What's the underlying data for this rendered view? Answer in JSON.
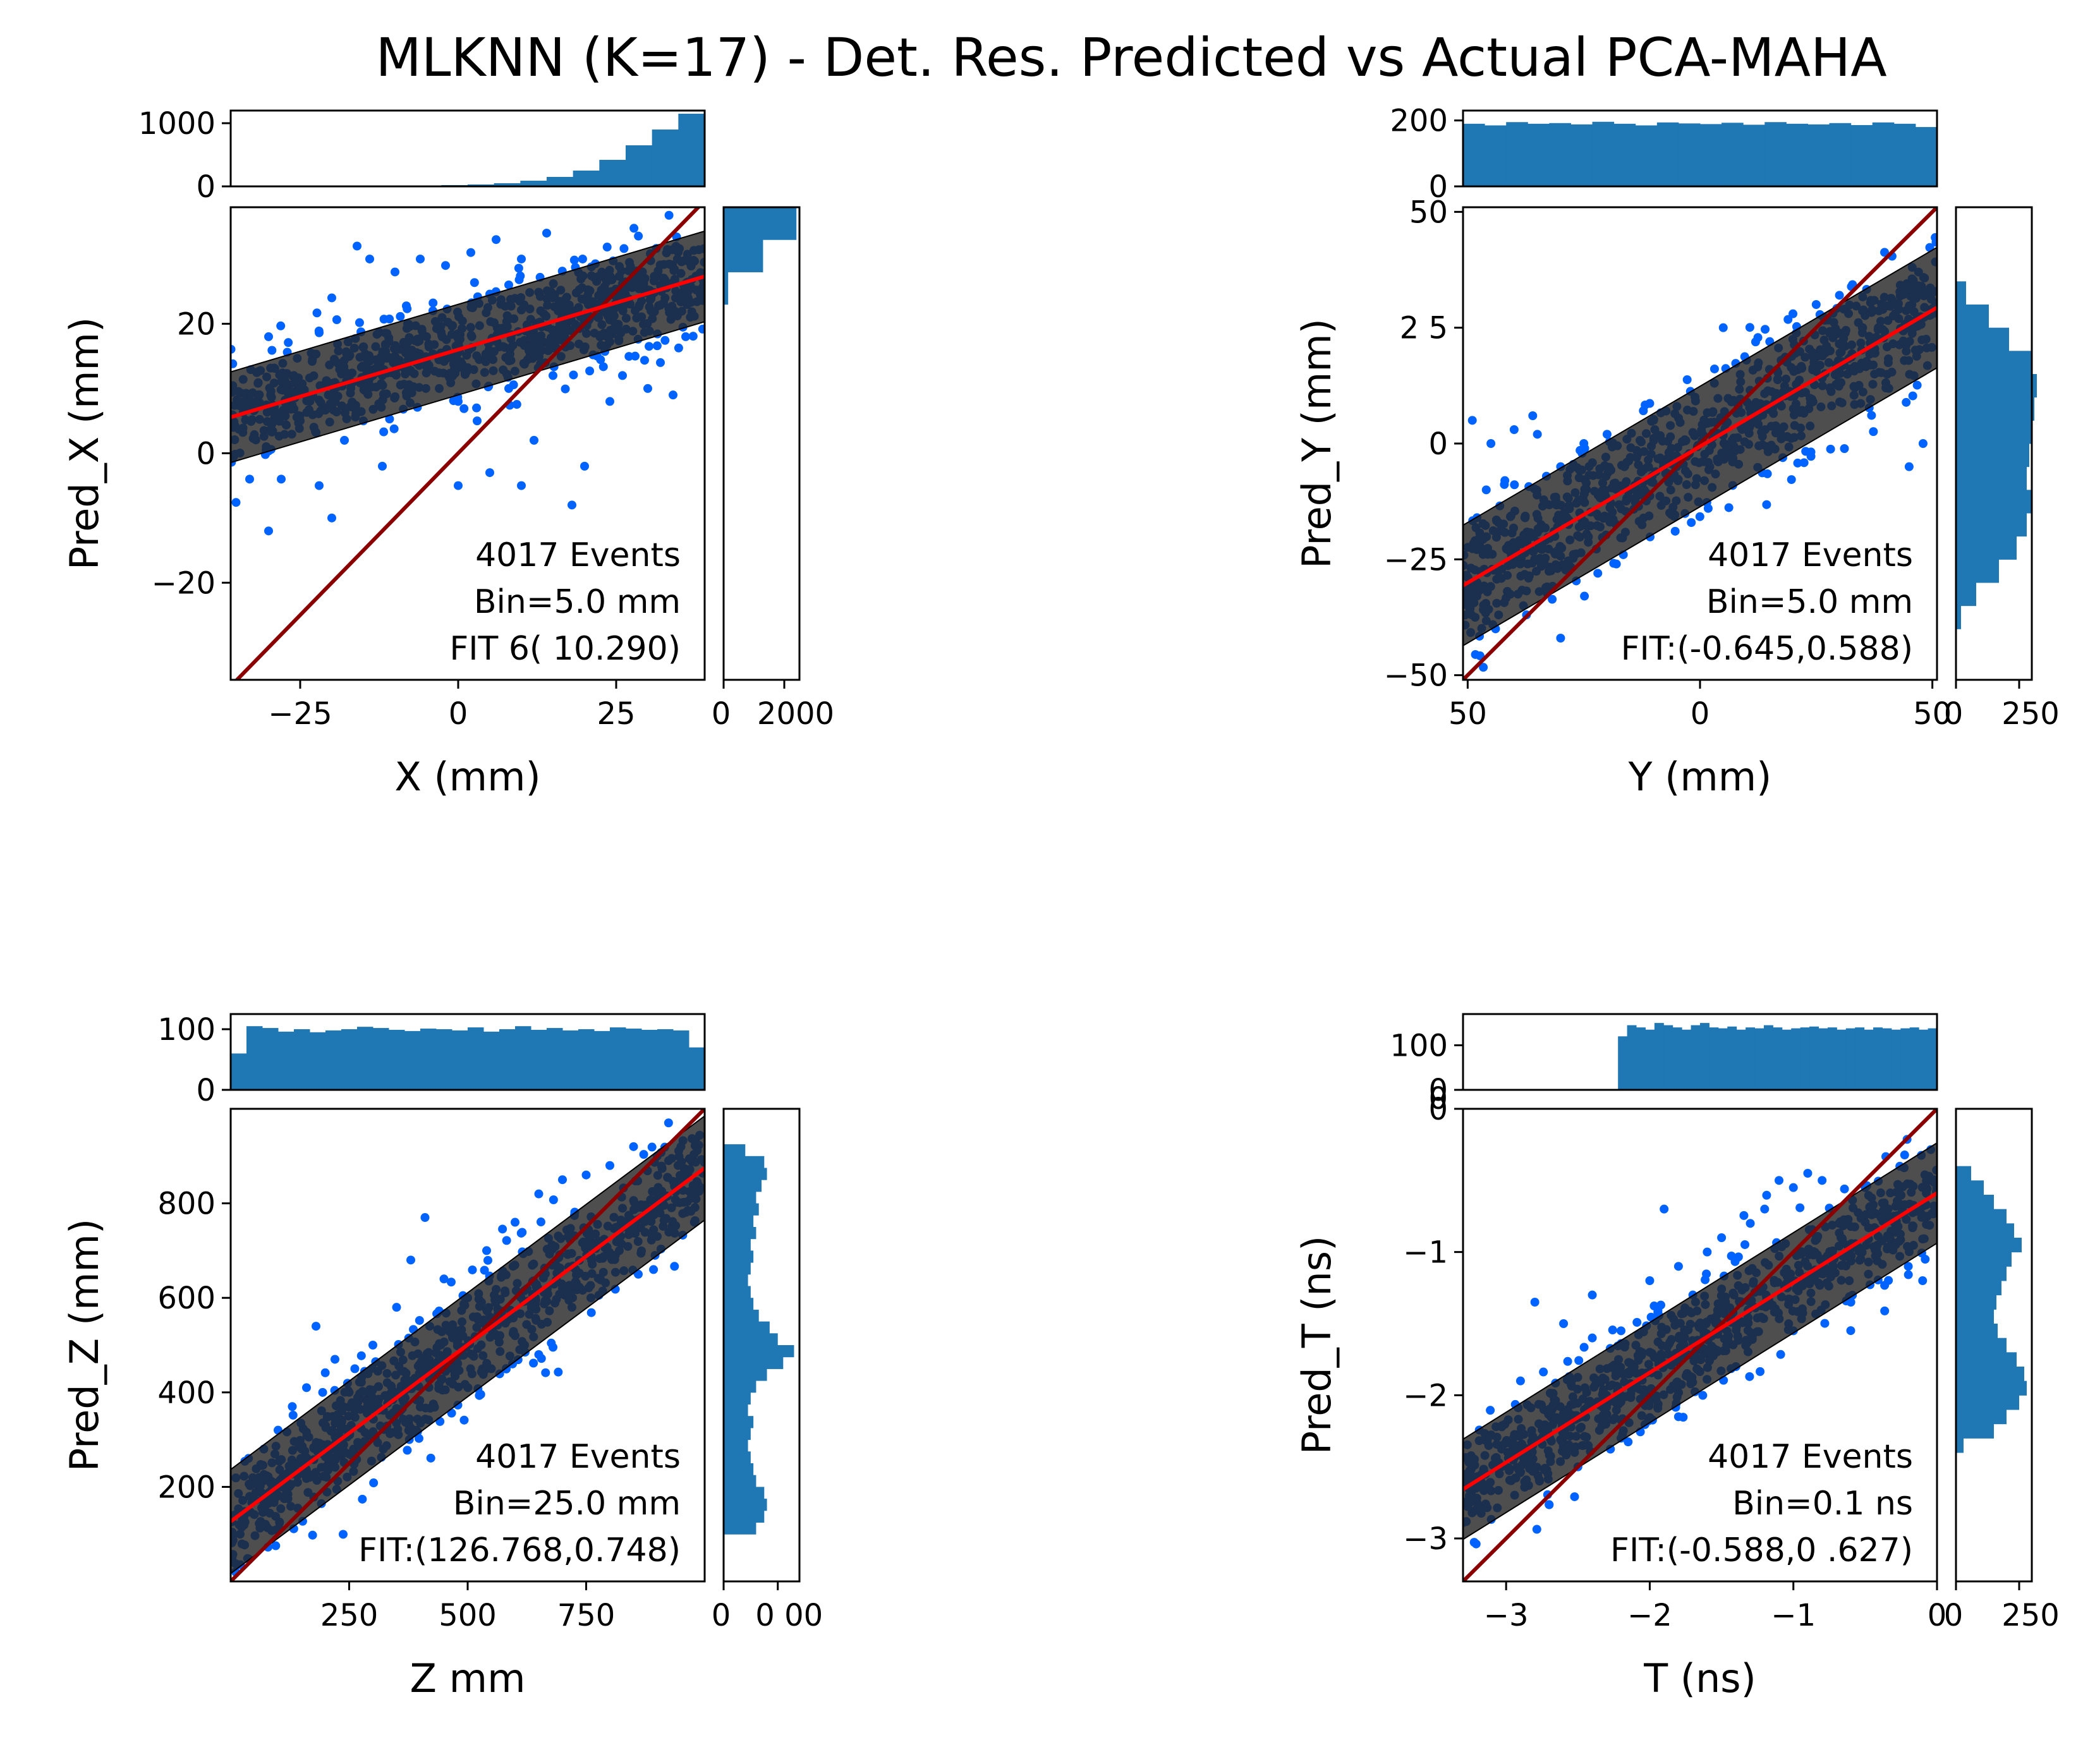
{
  "figure_title": "MLKNN (K=17)  - Det. Res. Predicted vs Actual PCA-MAHA",
  "colors": {
    "scatter": "#0063ff",
    "band": "#222222",
    "band_alpha": 0.8,
    "fit_line": "#ff0000",
    "identity_line": "#8b0000",
    "histogram": "#1f77b4"
  },
  "chart_data": [
    {
      "type": "scatter",
      "panel": "X",
      "xlabel": "X (mm)",
      "ylabel": "Pred_X (mm)",
      "xlim": [
        -36,
        39
      ],
      "ylim": [
        -35,
        38
      ],
      "xticks": [
        -25,
        0,
        25
      ],
      "xtick_labels": [
        "−25",
        "0",
        "25"
      ],
      "yticks": [
        -20,
        0,
        20
      ],
      "ytick_labels": [
        "−20",
        "0",
        "20"
      ],
      "annotation": [
        "4017 Events",
        "Bin=5.0 mm",
        "FIT   6(   10.290)"
      ],
      "events": 4017,
      "bin": "5.0 mm",
      "fit": {
        "intercept": 16,
        "slope": 0.29
      },
      "band_halfwidth": 7,
      "histx": {
        "ylim": [
          0,
          1200
        ],
        "yticks": [
          0,
          1000
        ],
        "ytick_labels": [
          "0",
          "1000"
        ],
        "values": [
          0,
          0,
          0,
          0,
          0,
          0,
          5,
          10,
          20,
          30,
          50,
          90,
          150,
          250,
          420,
          650,
          900,
          1150
        ]
      },
      "histy": {
        "xlim": [
          0,
          2500
        ],
        "xticks": [
          0,
          2000
        ],
        "xtick_labels": [
          "0",
          "2000"
        ],
        "bin_edges": [
          38,
          33,
          28,
          23,
          18,
          13
        ],
        "values": [
          2400,
          1300,
          150,
          20,
          5
        ]
      },
      "outliers": [
        [
          -33,
          -4
        ],
        [
          -30,
          -12
        ],
        [
          -28,
          -4
        ],
        [
          -25,
          5
        ],
        [
          -22,
          -5
        ],
        [
          -20,
          -10
        ],
        [
          -18,
          2
        ],
        [
          -15,
          5
        ],
        [
          -12,
          12
        ],
        [
          -10,
          15
        ],
        [
          -8,
          20
        ],
        [
          -5,
          18
        ],
        [
          -3,
          10
        ],
        [
          0,
          8
        ],
        [
          3,
          5
        ],
        [
          5,
          -3
        ],
        [
          8,
          10
        ],
        [
          10,
          -5
        ],
        [
          12,
          2
        ],
        [
          15,
          12
        ],
        [
          18,
          -8
        ],
        [
          20,
          -2
        ],
        [
          22,
          15
        ],
        [
          24,
          8
        ],
        [
          26,
          12
        ],
        [
          28,
          15
        ],
        [
          30,
          10
        ],
        [
          32,
          14
        ],
        [
          34,
          9
        ],
        [
          36,
          18
        ],
        [
          -14,
          30
        ],
        [
          -10,
          28
        ],
        [
          -6,
          30
        ],
        [
          -2,
          29
        ],
        [
          2,
          31
        ],
        [
          6,
          33
        ],
        [
          10,
          30
        ],
        [
          -16,
          32
        ],
        [
          14,
          34
        ],
        [
          -30,
          18
        ],
        [
          -34,
          8
        ],
        [
          -26,
          12
        ],
        [
          -20,
          24
        ],
        [
          -12,
          -2
        ],
        [
          0,
          -5
        ],
        [
          8,
          26
        ],
        [
          -4,
          22
        ]
      ]
    },
    {
      "type": "scatter",
      "panel": "Y",
      "xlabel": "Y (mm)",
      "ylabel": "Pred_Y (mm)",
      "xlim": [
        -51,
        51
      ],
      "ylim": [
        -51,
        51
      ],
      "xticks": [
        -50,
        0,
        50
      ],
      "xtick_labels": [
        "50",
        "0",
        "50"
      ],
      "yticks": [
        -50,
        -25,
        0,
        25,
        50
      ],
      "ytick_labels": [
        "−50",
        "−25",
        "0",
        "2   5",
        "50"
      ],
      "annotation": [
        "4017 Events",
        "Bin=5.0 mm",
        "FIT:(-0.645,0.588)"
      ],
      "events": 4017,
      "bin": "5.0 mm",
      "fit": {
        "intercept": -0.645,
        "slope": 0.588
      },
      "band_halfwidth": 13,
      "histx": {
        "ylim": [
          0,
          230
        ],
        "yticks": [
          0,
          200
        ],
        "ytick_labels": [
          "0",
          "200"
        ],
        "values": [
          190,
          185,
          195,
          190,
          192,
          188,
          196,
          190,
          185,
          194,
          191,
          189,
          193,
          187,
          195,
          190,
          188,
          192,
          186,
          194,
          190,
          180
        ]
      },
      "histy": {
        "xlim": [
          0,
          300
        ],
        "xticks": [
          0,
          250
        ],
        "xtick_labels": [
          "0",
          "250"
        ],
        "bin_edges": [
          35,
          30,
          25,
          20,
          15,
          10,
          5,
          0,
          -5,
          -10,
          -15,
          -20,
          -25,
          -30,
          -35,
          -40
        ],
        "values": [
          40,
          130,
          210,
          300,
          320,
          310,
          300,
          290,
          280,
          300,
          280,
          240,
          170,
          80,
          20
        ]
      },
      "outliers": [
        [
          -49,
          5
        ],
        [
          -45,
          0
        ],
        [
          -40,
          3
        ],
        [
          -35,
          2
        ],
        [
          -30,
          -5
        ],
        [
          -25,
          0
        ],
        [
          -20,
          2
        ],
        [
          -15,
          -3
        ],
        [
          -10,
          5
        ],
        [
          -50,
          -35
        ],
        [
          -48,
          -30
        ],
        [
          -44,
          -40
        ],
        [
          -38,
          -35
        ],
        [
          -30,
          -42
        ],
        [
          -22,
          -28
        ],
        [
          -12,
          -10
        ],
        [
          -5,
          -5
        ],
        [
          10,
          18
        ],
        [
          15,
          22
        ],
        [
          20,
          28
        ],
        [
          25,
          30
        ],
        [
          30,
          32
        ],
        [
          -42,
          -8
        ],
        [
          -36,
          6
        ],
        [
          -26,
          -18
        ],
        [
          48,
          0
        ],
        [
          45,
          -5
        ],
        [
          40,
          12
        ],
        [
          35,
          25
        ],
        [
          28,
          20
        ],
        [
          -46,
          -10
        ],
        [
          -32,
          -20
        ],
        [
          5,
          25
        ],
        [
          -18,
          -26
        ],
        [
          42,
          28
        ]
      ]
    },
    {
      "type": "scatter",
      "panel": "Z",
      "xlabel": "Z mm",
      "ylabel": "Pred_Z (mm)",
      "xlim": [
        0,
        1000
      ],
      "ylim": [
        0,
        1000
      ],
      "xticks": [
        250,
        500,
        750
      ],
      "xtick_labels": [
        "250",
        "500",
        "750"
      ],
      "yticks": [
        200,
        400,
        600,
        800
      ],
      "ytick_labels": [
        "200",
        "400",
        "600",
        "800"
      ],
      "annotation": [
        "4017 Events",
        "Bin=25.0 mm",
        "FIT:(126.768,0.748)"
      ],
      "events": 4017,
      "bin": "25.0 mm",
      "fit": {
        "intercept": 126.768,
        "slope": 0.748
      },
      "band_halfwidth": 110,
      "histx": {
        "ylim": [
          0,
          125
        ],
        "yticks": [
          0,
          100
        ],
        "ytick_labels": [
          "0",
          "100"
        ],
        "values": [
          60,
          105,
          102,
          96,
          100,
          95,
          98,
          100,
          104,
          102,
          99,
          97,
          101,
          100,
          98,
          103,
          96,
          100,
          105,
          99,
          102,
          98,
          100,
          97,
          103,
          101,
          99,
          100,
          98,
          70
        ]
      },
      "histy": {
        "xlim": [
          0,
          140
        ],
        "xticks": [
          0,
          100
        ],
        "xtick_labels": [
          "0",
          "0 00"
        ],
        "bin_edges": [
          925,
          900,
          875,
          850,
          825,
          800,
          775,
          750,
          725,
          700,
          675,
          650,
          625,
          600,
          575,
          550,
          525,
          500,
          475,
          450,
          425,
          400,
          375,
          350,
          325,
          300,
          275,
          250,
          225,
          200,
          175,
          150,
          125,
          100
        ],
        "values": [
          40,
          75,
          80,
          70,
          60,
          65,
          55,
          60,
          50,
          55,
          50,
          45,
          50,
          55,
          65,
          85,
          100,
          130,
          110,
          80,
          60,
          50,
          45,
          55,
          50,
          45,
          50,
          55,
          60,
          75,
          80,
          75,
          60
        ]
      },
      "outliers": [
        [
          20,
          100
        ],
        [
          40,
          180
        ],
        [
          60,
          220
        ],
        [
          70,
          280
        ],
        [
          100,
          320
        ],
        [
          100,
          210
        ],
        [
          130,
          370
        ],
        [
          150,
          280
        ],
        [
          160,
          410
        ],
        [
          180,
          540
        ],
        [
          200,
          330
        ],
        [
          220,
          470
        ],
        [
          250,
          400
        ],
        [
          300,
          500
        ],
        [
          350,
          580
        ],
        [
          380,
          680
        ],
        [
          410,
          770
        ],
        [
          450,
          640
        ],
        [
          500,
          600
        ],
        [
          540,
          700
        ],
        [
          600,
          760
        ],
        [
          650,
          820
        ],
        [
          700,
          850
        ],
        [
          750,
          860
        ],
        [
          800,
          880
        ],
        [
          850,
          920
        ],
        [
          900,
          900
        ],
        [
          950,
          920
        ],
        [
          780,
          640
        ],
        [
          820,
          700
        ],
        [
          860,
          650
        ],
        [
          900,
          730
        ],
        [
          600,
          520
        ],
        [
          650,
          480
        ],
        [
          550,
          450
        ],
        [
          450,
          450
        ],
        [
          720,
          580
        ],
        [
          520,
          560
        ],
        [
          480,
          520
        ],
        [
          330,
          440
        ],
        [
          420,
          540
        ],
        [
          700,
          620
        ],
        [
          760,
          600
        ]
      ]
    },
    {
      "type": "scatter",
      "panel": "T",
      "xlabel": "T (ns)",
      "ylabel": "Pred_T (ns)",
      "xlim": [
        -3.3,
        0
      ],
      "ylim": [
        -3.3,
        0
      ],
      "xticks": [
        -3,
        -2,
        -1,
        0
      ],
      "xtick_labels": [
        "−3",
        "−2",
        "−1",
        "0"
      ],
      "yticks": [
        -3,
        -2,
        -1,
        0
      ],
      "ytick_labels": [
        "−3",
        "−2",
        "−1",
        "0"
      ],
      "annotation": [
        "4017 Events",
        "Bin=0.1 ns",
        "FIT:(-0.588,0 .627)"
      ],
      "events": 4017,
      "bin": "0.1 ns",
      "fit": {
        "intercept": -0.588,
        "slope": 0.627
      },
      "band_halfwidth": 0.35,
      "histx": {
        "ylim": [
          0,
          170
        ],
        "yticks": [
          0,
          100
        ],
        "ytick_labels": [
          "0",
          "100"
        ],
        "second_zero_label": "0",
        "values": [
          0,
          0,
          0,
          0,
          0,
          0,
          0,
          0,
          0,
          0,
          0,
          0,
          0,
          0,
          0,
          0,
          0,
          120,
          145,
          140,
          135,
          150,
          145,
          140,
          135,
          145,
          150,
          140,
          138,
          142,
          135,
          140,
          138,
          145,
          140,
          135,
          138,
          140,
          142,
          138,
          140,
          135,
          138,
          140,
          135,
          140,
          138,
          135,
          138,
          140,
          135,
          138
        ]
      },
      "histy": {
        "xlim": [
          0,
          300
        ],
        "xticks": [
          0,
          250
        ],
        "xtick_labels": [
          "0",
          "250"
        ],
        "bin_edges": [
          -0.4,
          -0.5,
          -0.6,
          -0.7,
          -0.8,
          -0.9,
          -1.0,
          -1.1,
          -1.2,
          -1.3,
          -1.4,
          -1.5,
          -1.6,
          -1.7,
          -1.8,
          -1.9,
          -2.0,
          -2.1,
          -2.2,
          -2.3,
          -2.4
        ],
        "values": [
          60,
          110,
          150,
          200,
          230,
          260,
          220,
          200,
          180,
          160,
          150,
          165,
          200,
          240,
          270,
          280,
          250,
          200,
          150,
          30
        ]
      },
      "outliers": [
        [
          -2.9,
          -1.9
        ],
        [
          -2.8,
          -1.35
        ],
        [
          -2.6,
          -1.5
        ],
        [
          -2.4,
          -1.3
        ],
        [
          -2.2,
          -1.55
        ],
        [
          -2.0,
          -1.2
        ],
        [
          -1.9,
          -0.7
        ],
        [
          -1.8,
          -1.1
        ],
        [
          -1.7,
          -1.3
        ],
        [
          -1.6,
          -1.0
        ],
        [
          -1.5,
          -0.9
        ],
        [
          -1.4,
          -1.05
        ],
        [
          -1.3,
          -0.8
        ],
        [
          -1.2,
          -0.7
        ],
        [
          -1.1,
          -0.5
        ],
        [
          -1.0,
          -0.55
        ],
        [
          -0.9,
          -0.45
        ],
        [
          -0.8,
          -0.5
        ],
        [
          -0.5,
          -0.55
        ],
        [
          -0.3,
          -0.75
        ],
        [
          -0.2,
          -1.1
        ],
        [
          -0.1,
          -1.2
        ],
        [
          -2.5,
          -2.5
        ],
        [
          -2.2,
          -2.3
        ],
        [
          -1.8,
          -2.15
        ],
        [
          -1.4,
          -1.8
        ],
        [
          -1.0,
          -1.55
        ],
        [
          -0.6,
          -1.35
        ],
        [
          -2.4,
          -1.6
        ],
        [
          -2.0,
          -1.7
        ]
      ]
    }
  ]
}
